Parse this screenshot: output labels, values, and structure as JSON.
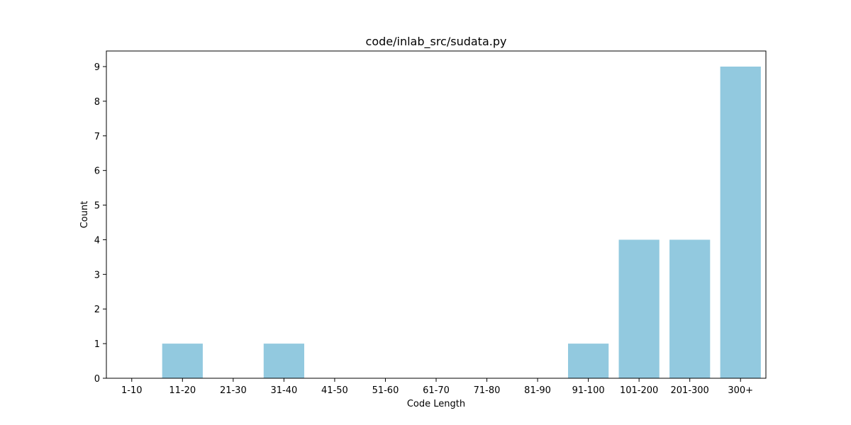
{
  "chart_data": {
    "type": "bar",
    "title": "code/inlab_src/sudata.py",
    "xlabel": "Code Length",
    "ylabel": "Count",
    "categories": [
      "1-10",
      "11-20",
      "21-30",
      "31-40",
      "41-50",
      "51-60",
      "61-70",
      "71-80",
      "81-90",
      "91-100",
      "101-200",
      "201-300",
      "300+"
    ],
    "values": [
      0,
      1,
      0,
      1,
      0,
      0,
      0,
      0,
      0,
      1,
      4,
      4,
      9
    ],
    "ylim": [
      0,
      9.45
    ],
    "yticks": [
      "0",
      "1",
      "2",
      "3",
      "4",
      "5",
      "6",
      "7",
      "8",
      "9"
    ],
    "grid": false,
    "bar_color": "#92c9df"
  }
}
